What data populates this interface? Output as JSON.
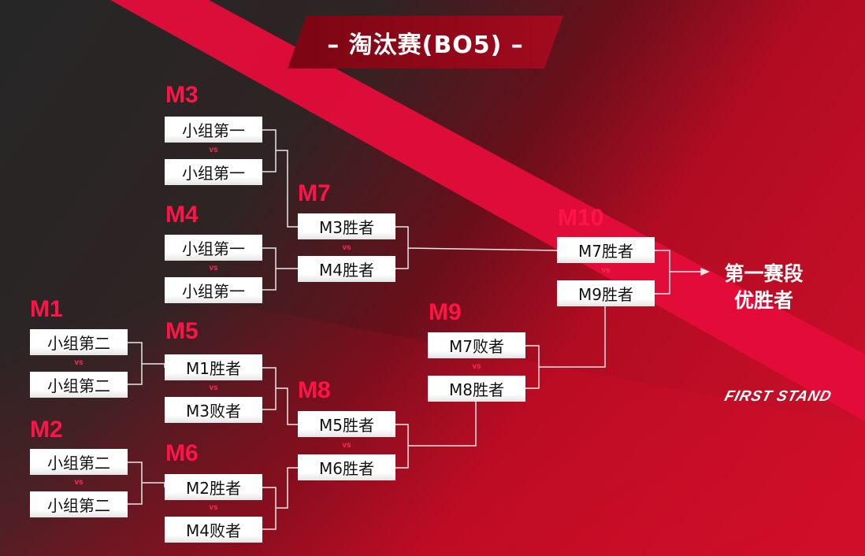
{
  "title": "– 淘汰赛(BO5) –",
  "matches": {
    "M1": {
      "label": "M1",
      "top": "小组第二",
      "bottom": "小组第二"
    },
    "M2": {
      "label": "M2",
      "top": "小组第二",
      "bottom": "小组第二"
    },
    "M3": {
      "label": "M3",
      "top": "小组第一",
      "bottom": "小组第一"
    },
    "M4": {
      "label": "M4",
      "top": "小组第一",
      "bottom": "小组第一"
    },
    "M5": {
      "label": "M5",
      "top": "M1胜者",
      "bottom": "M3败者"
    },
    "M6": {
      "label": "M6",
      "top": "M2胜者",
      "bottom": "M4败者"
    },
    "M7": {
      "label": "M7",
      "top": "M3胜者",
      "bottom": "M4胜者"
    },
    "M8": {
      "label": "M8",
      "top": "M5胜者",
      "bottom": "M6胜者"
    },
    "M9": {
      "label": "M9",
      "top": "M7败者",
      "bottom": "M8胜者"
    },
    "M10": {
      "label": "M10",
      "top": "M7胜者",
      "bottom": "M9胜者"
    }
  },
  "vs": "vs",
  "final": {
    "line1": "第一赛段",
    "line2": "优胜者"
  },
  "logo": "FIRST STAND",
  "colors": {
    "accent": "#ff1447",
    "stripe": "#e50d3a",
    "banner": "#8a0816",
    "dark": "#262626"
  }
}
